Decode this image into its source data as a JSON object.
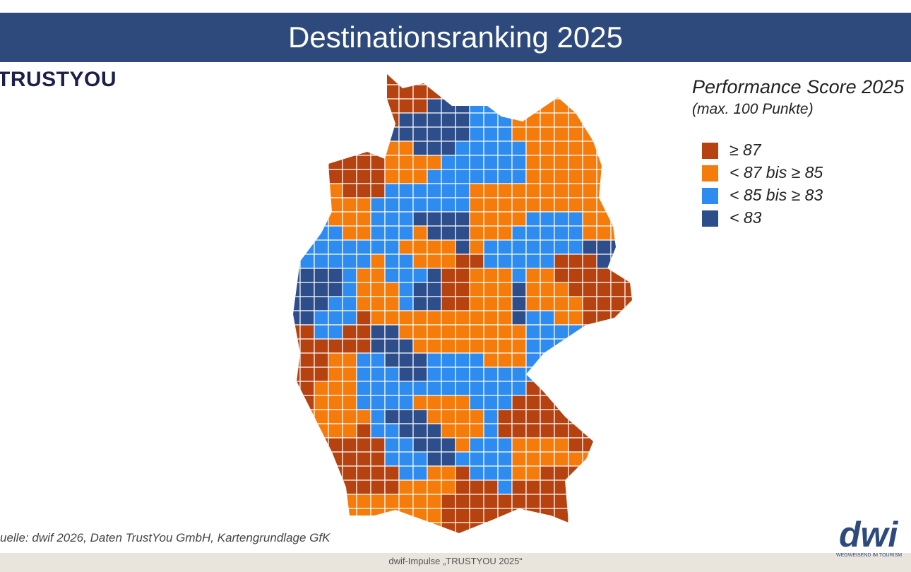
{
  "header": {
    "title": "Destinationsranking 2025"
  },
  "logo": "TRUSTYOU",
  "legend": {
    "title": "Performance Score 2025",
    "subtitle": "(max. 100 Punkte)",
    "items": [
      "≥ 87",
      "< 87 bis ≥ 85",
      "< 85 bis ≥ 83",
      "< 83"
    ]
  },
  "source": "uelle: dwif 2026, Daten TrustYou GmbH, Kartengrundlage GfK",
  "footer": "dwif-Impulse „TRUSTYOU 2025“",
  "brand": {
    "name": "dwi",
    "tagline": "WEGWEISEND IM TOURISM"
  }
}
